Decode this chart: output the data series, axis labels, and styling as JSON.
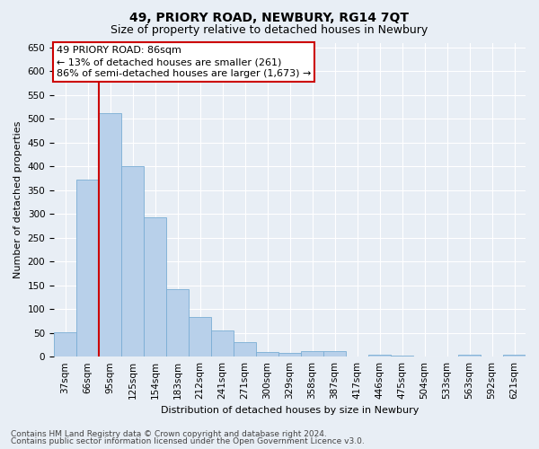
{
  "title": "49, PRIORY ROAD, NEWBURY, RG14 7QT",
  "subtitle": "Size of property relative to detached houses in Newbury",
  "xlabel": "Distribution of detached houses by size in Newbury",
  "ylabel": "Number of detached properties",
  "footnote1": "Contains HM Land Registry data © Crown copyright and database right 2024.",
  "footnote2": "Contains public sector information licensed under the Open Government Licence v3.0.",
  "annotation_title": "49 PRIORY ROAD: 86sqm",
  "annotation_line1": "← 13% of detached houses are smaller (261)",
  "annotation_line2": "86% of semi-detached houses are larger (1,673) →",
  "bar_labels": [
    "37sqm",
    "66sqm",
    "95sqm",
    "125sqm",
    "154sqm",
    "183sqm",
    "212sqm",
    "241sqm",
    "271sqm",
    "300sqm",
    "329sqm",
    "358sqm",
    "387sqm",
    "417sqm",
    "446sqm",
    "475sqm",
    "504sqm",
    "533sqm",
    "563sqm",
    "592sqm",
    "621sqm"
  ],
  "bar_values": [
    52,
    373,
    512,
    400,
    292,
    142,
    84,
    55,
    30,
    10,
    8,
    11,
    12,
    0,
    5,
    2,
    0,
    0,
    4,
    0,
    4
  ],
  "bar_color": "#b8d0ea",
  "bar_edge_color": "#7aadd4",
  "bar_width": 1.0,
  "red_line_x": 1.5,
  "ylim_max": 660,
  "ytick_step": 50,
  "bg_color": "#e8eef5",
  "grid_color": "#ffffff",
  "red_color": "#cc0000",
  "annot_bg": "#ffffff",
  "annot_edge": "#cc0000",
  "title_fs": 10,
  "subtitle_fs": 9,
  "axis_label_fs": 8,
  "tick_fs": 7.5,
  "annot_fs": 8,
  "footnote_fs": 6.5
}
